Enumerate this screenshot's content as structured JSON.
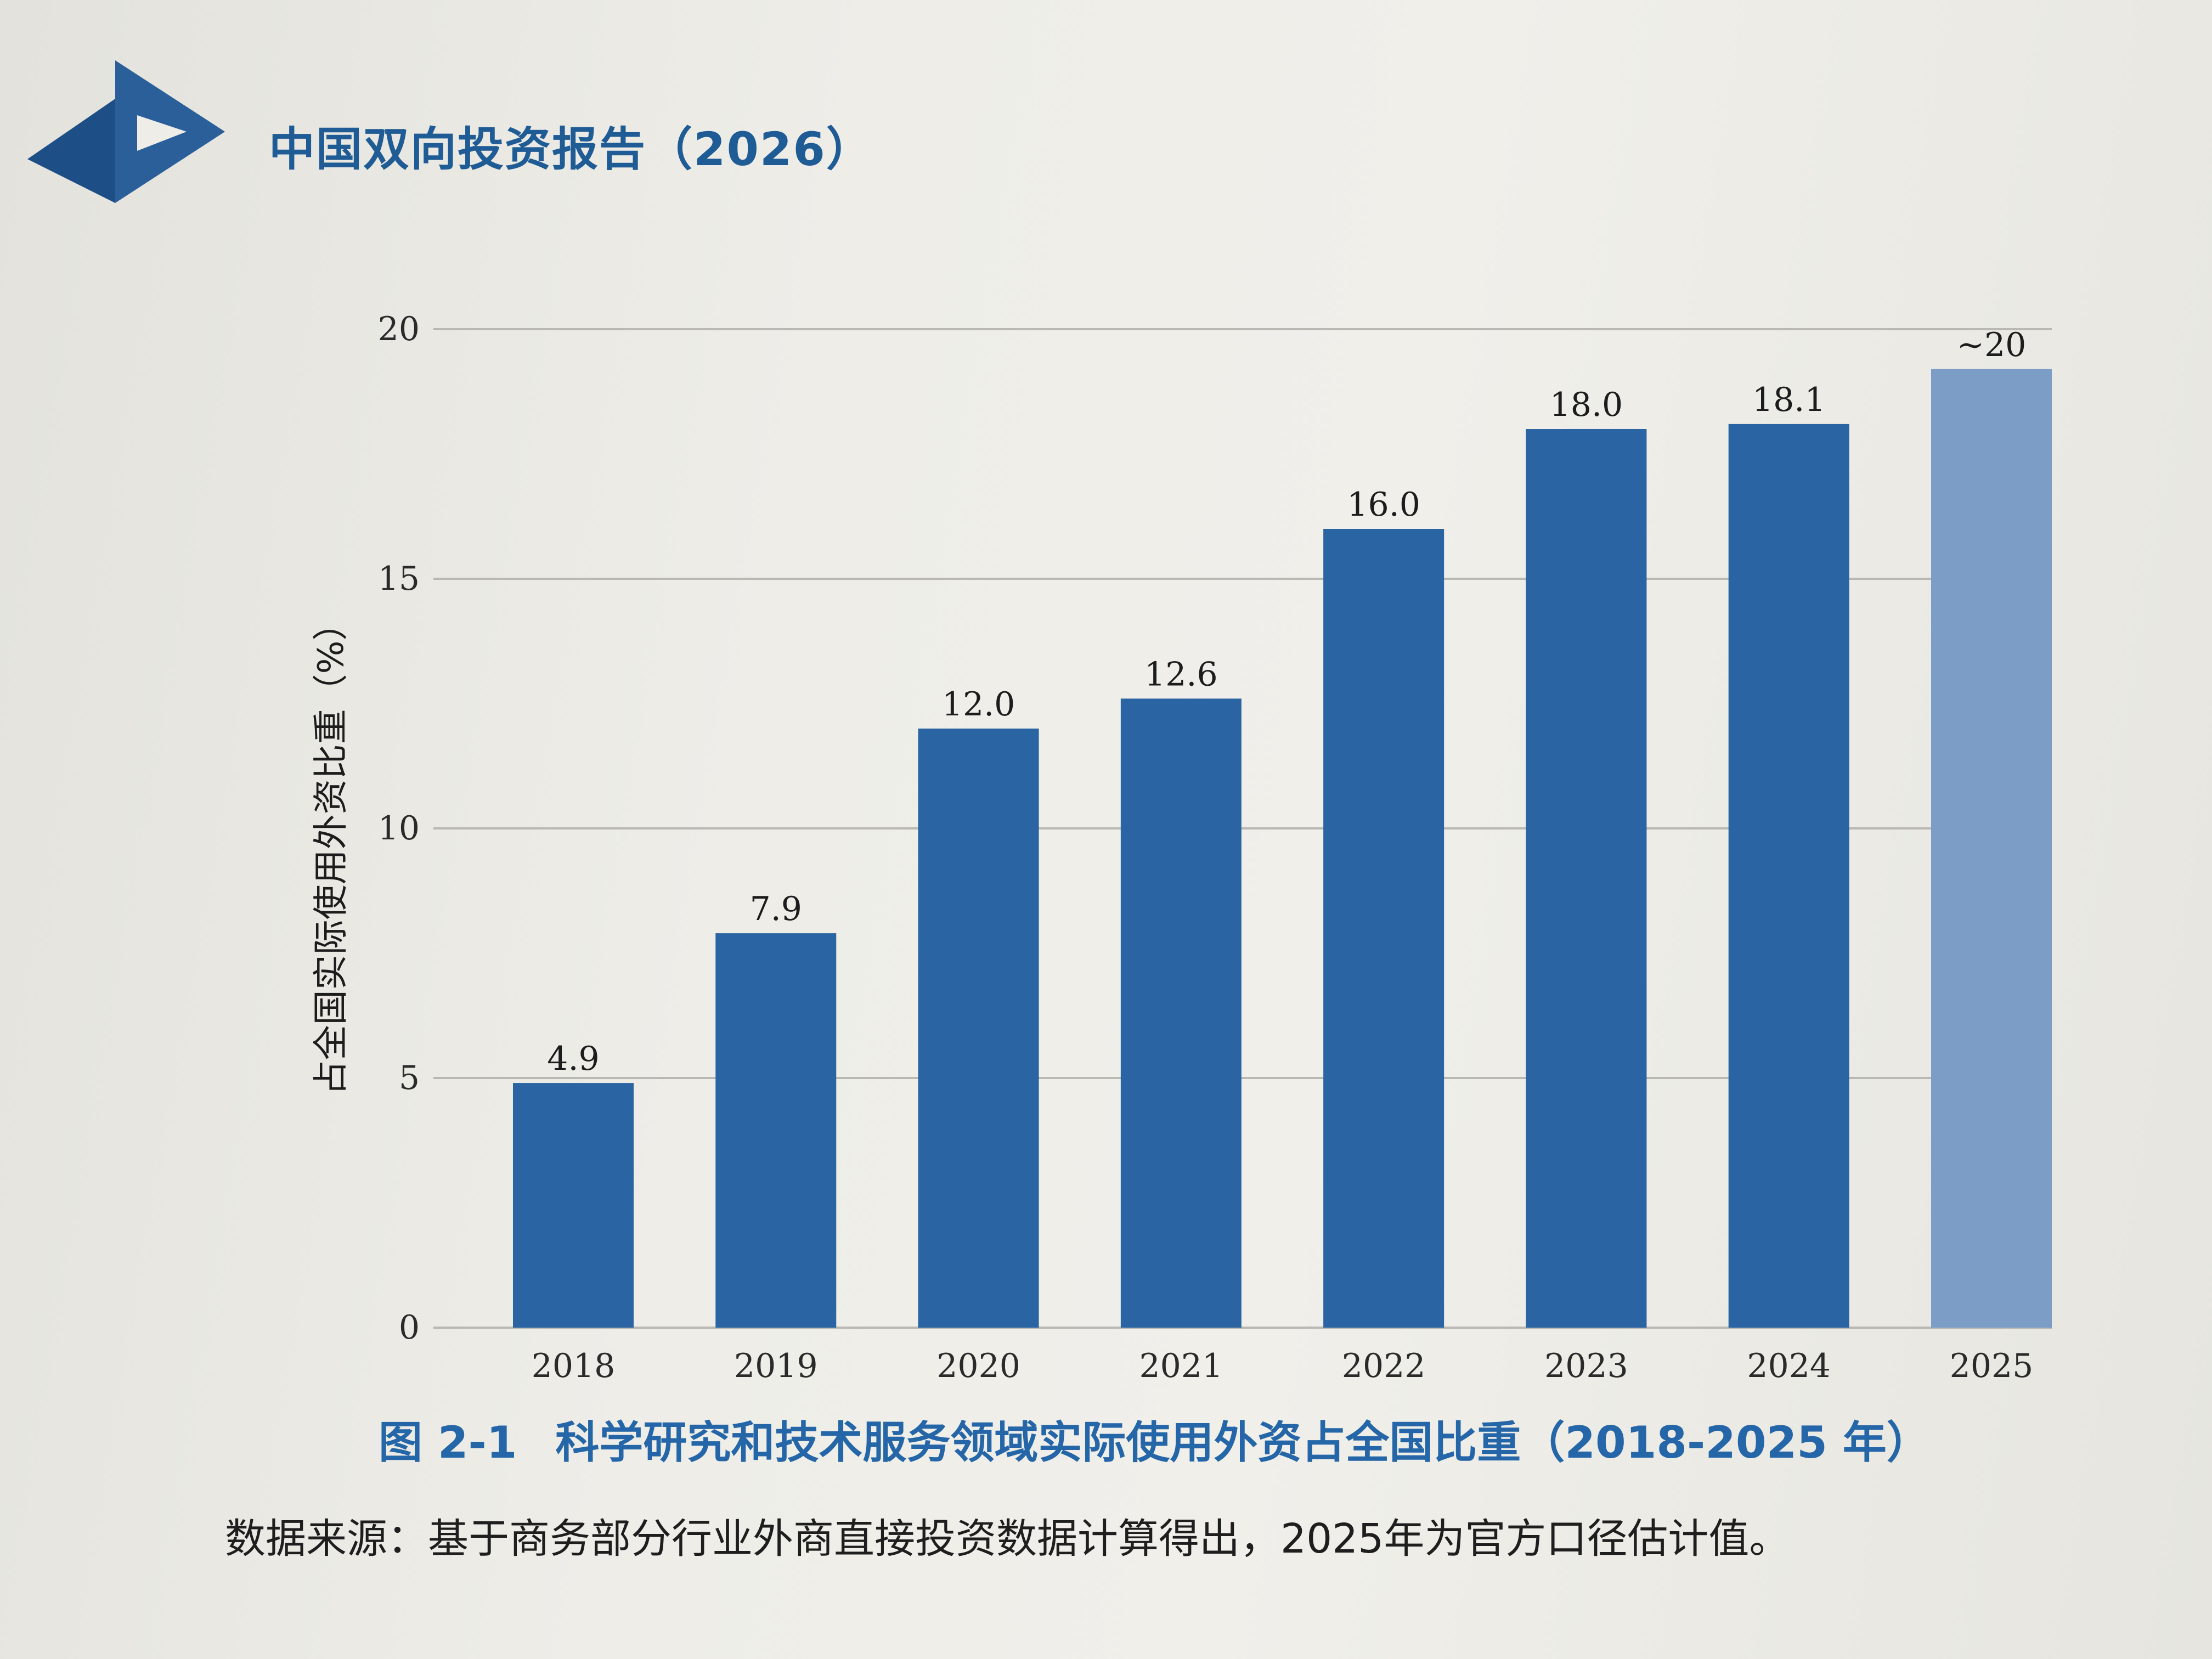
{
  "header": {
    "title": "中国双向投资报告（2026）"
  },
  "colors": {
    "brand": "#1f5b94",
    "bar": "#2a64a2",
    "bar_estimate": "#7c9dc5",
    "caption": "#2466a8",
    "grid": "#b9b8b2"
  },
  "chart_data": {
    "type": "bar",
    "categories": [
      "2018",
      "2019",
      "2020",
      "2021",
      "2022",
      "2023",
      "2024",
      "2025"
    ],
    "values": [
      4.9,
      7.9,
      12.0,
      12.6,
      16.0,
      18.0,
      18.1,
      19.2
    ],
    "data_labels": [
      "4.9",
      "7.9",
      "12.0",
      "12.6",
      "16.0",
      "18.0",
      "18.1",
      "~20"
    ],
    "estimated": [
      false,
      false,
      false,
      false,
      false,
      false,
      false,
      true
    ],
    "ylabel": "占全国实际使用外资比重（%）",
    "xlabel": "",
    "ylim": [
      0,
      20
    ],
    "yticks": [
      0,
      5,
      10,
      15,
      20
    ],
    "grid": true,
    "legend": "none"
  },
  "caption": {
    "figure_number": "图 2-1",
    "title": "科学研究和技术服务领域实际使用外资占全国比重（2018-2025 年）"
  },
  "source_note": "数据来源：基于商务部分行业外商直接投资数据计算得出，2025年为官方口径估计值。"
}
